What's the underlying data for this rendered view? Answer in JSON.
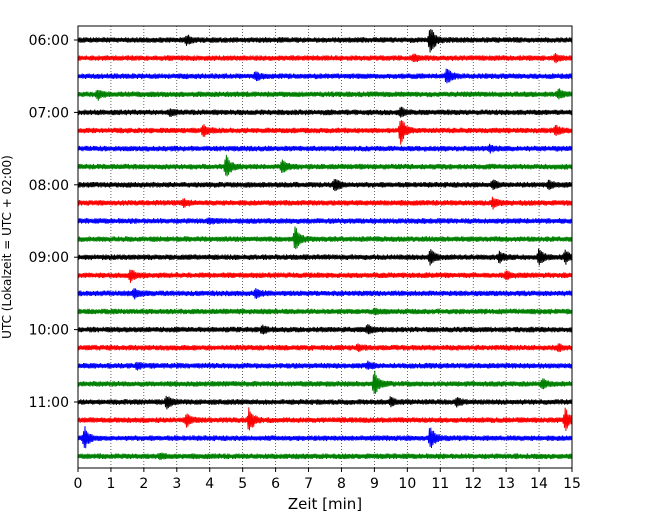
{
  "chart_data": {
    "type": "line",
    "subtype": "helicorder-seismogram",
    "xlabel": "Zeit  [min]",
    "ylabel": "UTC (Lokalzeit = UTC + 02:00)",
    "xlim": [
      0,
      15
    ],
    "x_ticks": [
      "0",
      "1",
      "2",
      "3",
      "4",
      "5",
      "6",
      "7",
      "8",
      "9",
      "10",
      "11",
      "12",
      "13",
      "14",
      "15"
    ],
    "y_tick_labels": [
      "06:00",
      "07:00",
      "08:00",
      "09:00",
      "10:00",
      "11:00"
    ],
    "trace_colors": [
      "#000000",
      "#ff0000",
      "#0000ff",
      "#008000"
    ],
    "trace_count": 24,
    "vertical_grid": "dotted",
    "traces": [
      {
        "start": "06:00",
        "events": [
          {
            "t": 3.3,
            "amp": 0.35
          },
          {
            "t": 10.7,
            "amp": 1.0
          }
        ]
      },
      {
        "start": "06:15",
        "events": [
          {
            "t": 10.2,
            "amp": 0.25
          },
          {
            "t": 14.5,
            "amp": 0.25
          }
        ]
      },
      {
        "start": "06:30",
        "events": [
          {
            "t": 5.4,
            "amp": 0.25
          },
          {
            "t": 11.2,
            "amp": 0.55
          }
        ]
      },
      {
        "start": "06:45",
        "events": [
          {
            "t": 0.6,
            "amp": 0.3
          },
          {
            "t": 14.6,
            "amp": 0.3
          }
        ]
      },
      {
        "start": "07:00",
        "events": [
          {
            "t": 2.8,
            "amp": 0.2
          },
          {
            "t": 9.8,
            "amp": 0.3
          }
        ]
      },
      {
        "start": "07:15",
        "events": [
          {
            "t": 3.8,
            "amp": 0.45
          },
          {
            "t": 9.8,
            "amp": 1.0
          },
          {
            "t": 14.5,
            "amp": 0.35
          }
        ]
      },
      {
        "start": "07:30",
        "events": [
          {
            "t": 12.5,
            "amp": 0.2
          }
        ]
      },
      {
        "start": "07:45",
        "events": [
          {
            "t": 4.5,
            "amp": 0.8
          },
          {
            "t": 6.2,
            "amp": 0.45
          }
        ]
      },
      {
        "start": "08:00",
        "events": [
          {
            "t": 7.8,
            "amp": 0.5
          },
          {
            "t": 12.6,
            "amp": 0.3
          },
          {
            "t": 14.3,
            "amp": 0.3
          }
        ]
      },
      {
        "start": "08:15",
        "events": [
          {
            "t": 3.2,
            "amp": 0.25
          },
          {
            "t": 12.6,
            "amp": 0.35
          }
        ]
      },
      {
        "start": "08:30",
        "events": [
          {
            "t": 4.0,
            "amp": 0.15
          }
        ]
      },
      {
        "start": "08:45",
        "events": [
          {
            "t": 6.6,
            "amp": 0.85
          }
        ]
      },
      {
        "start": "09:00",
        "events": [
          {
            "t": 10.7,
            "amp": 0.55
          },
          {
            "t": 12.8,
            "amp": 0.35
          },
          {
            "t": 14.0,
            "amp": 0.6
          },
          {
            "t": 14.8,
            "amp": 0.5
          }
        ]
      },
      {
        "start": "09:15",
        "events": [
          {
            "t": 1.6,
            "amp": 0.45
          },
          {
            "t": 13.0,
            "amp": 0.3
          }
        ]
      },
      {
        "start": "09:30",
        "events": [
          {
            "t": 1.7,
            "amp": 0.35
          },
          {
            "t": 5.4,
            "amp": 0.3
          }
        ]
      },
      {
        "start": "09:45",
        "events": [
          {
            "t": 9.0,
            "amp": 0.15
          }
        ]
      },
      {
        "start": "10:00",
        "events": [
          {
            "t": 5.6,
            "amp": 0.25
          },
          {
            "t": 8.8,
            "amp": 0.3
          }
        ]
      },
      {
        "start": "10:15",
        "events": [
          {
            "t": 8.5,
            "amp": 0.2
          },
          {
            "t": 14.6,
            "amp": 0.2
          }
        ]
      },
      {
        "start": "10:30",
        "events": [
          {
            "t": 1.8,
            "amp": 0.2
          },
          {
            "t": 8.8,
            "amp": 0.25
          }
        ]
      },
      {
        "start": "10:45",
        "events": [
          {
            "t": 9.0,
            "amp": 0.9
          },
          {
            "t": 14.1,
            "amp": 0.3
          }
        ]
      },
      {
        "start": "11:00",
        "events": [
          {
            "t": 2.7,
            "amp": 0.45
          },
          {
            "t": 9.5,
            "amp": 0.3
          },
          {
            "t": 11.5,
            "amp": 0.3
          }
        ]
      },
      {
        "start": "11:15",
        "events": [
          {
            "t": 3.3,
            "amp": 0.45
          },
          {
            "t": 5.2,
            "amp": 0.9
          },
          {
            "t": 14.8,
            "amp": 0.85
          }
        ]
      },
      {
        "start": "11:30",
        "events": [
          {
            "t": 0.2,
            "amp": 0.8
          },
          {
            "t": 10.7,
            "amp": 0.85
          }
        ]
      },
      {
        "start": "11:45",
        "events": [
          {
            "t": 2.5,
            "amp": 0.15
          }
        ]
      }
    ]
  }
}
